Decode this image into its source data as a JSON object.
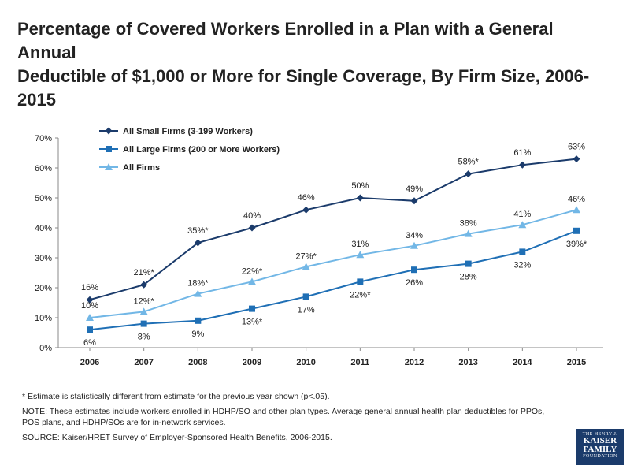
{
  "title": {
    "line1": "Percentage of Covered Workers Enrolled in a Plan with a General Annual",
    "line2": "Deductible of $1,000 or More for Single Coverage, By Firm Size, 2006-2015"
  },
  "chart_data": {
    "type": "line",
    "x": [
      "2006",
      "2007",
      "2008",
      "2009",
      "2010",
      "2011",
      "2012",
      "2013",
      "2014",
      "2015"
    ],
    "ylim": [
      0,
      70
    ],
    "yticks": [
      "0%",
      "10%",
      "20%",
      "30%",
      "40%",
      "50%",
      "60%",
      "70%"
    ],
    "legend_position": "top-left",
    "grid": false,
    "series": [
      {
        "name": "All Small Firms (3-199 Workers)",
        "color": "#1b3b6b",
        "marker": "diamond",
        "values": [
          16,
          21,
          35,
          40,
          46,
          50,
          49,
          58,
          61,
          63
        ],
        "labels": [
          "16%",
          "21%*",
          "35%*",
          "40%",
          "46%",
          "50%",
          "49%",
          "58%*",
          "61%",
          "63%"
        ]
      },
      {
        "name": "All Large Firms (200 or More Workers)",
        "color": "#1f6fb5",
        "marker": "square",
        "values": [
          6,
          8,
          9,
          13,
          17,
          22,
          26,
          28,
          32,
          39
        ],
        "labels": [
          "6%",
          "8%",
          "9%",
          "13%*",
          "17%",
          "22%*",
          "26%",
          "28%",
          "32%",
          "39%*"
        ]
      },
      {
        "name": "All Firms",
        "color": "#72b7e6",
        "marker": "triangle",
        "values": [
          10,
          12,
          18,
          22,
          27,
          31,
          34,
          38,
          41,
          46
        ],
        "labels": [
          "10%",
          "12%*",
          "18%*",
          "22%*",
          "27%*",
          "31%",
          "34%",
          "38%",
          "41%",
          "46%"
        ]
      }
    ]
  },
  "footnotes": {
    "asterisk": "* Estimate is statistically different from estimate for the previous year shown (p<.05).",
    "note": "NOTE: These estimates include workers enrolled in HDHP/SO and other plan types. Average general annual health plan deductibles for PPOs, POS plans, and HDHP/SOs are for in-network services.",
    "source": "SOURCE: Kaiser/HRET Survey of Employer-Sponsored Health Benefits, 2006-2015."
  },
  "logo": {
    "line1": "THE HENRY J.",
    "line2": "KAISER",
    "line3": "FAMILY",
    "line4": "FOUNDATION"
  }
}
